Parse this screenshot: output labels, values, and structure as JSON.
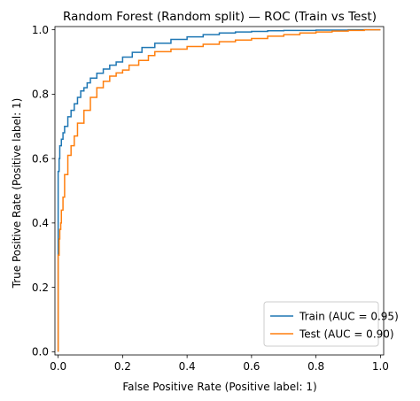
{
  "chart_data": {
    "type": "line",
    "title": "Random Forest (Random split) — ROC (Train vs Test)",
    "xlabel": "False Positive Rate (Positive label: 1)",
    "ylabel": "True Positive Rate (Positive label: 1)",
    "xlim": [
      -0.01,
      1.01
    ],
    "ylim": [
      -0.01,
      1.01
    ],
    "xticks": [
      0.0,
      0.2,
      0.4,
      0.6,
      0.8,
      1.0
    ],
    "yticks": [
      0.0,
      0.2,
      0.4,
      0.6,
      0.8,
      1.0
    ],
    "xtick_labels": [
      "0.0",
      "0.2",
      "0.4",
      "0.6",
      "0.8",
      "1.0"
    ],
    "ytick_labels": [
      "0.0",
      "0.2",
      "0.4",
      "0.6",
      "0.8",
      "1.0"
    ],
    "grid": false,
    "legend_position": "lower-right",
    "series": [
      {
        "name": "Train (AUC = 0.95)",
        "color": "#1f77b4",
        "x": [
          0.0,
          0.0,
          0.003,
          0.005,
          0.01,
          0.015,
          0.02,
          0.03,
          0.04,
          0.05,
          0.06,
          0.07,
          0.08,
          0.09,
          0.1,
          0.12,
          0.14,
          0.16,
          0.18,
          0.2,
          0.23,
          0.26,
          0.3,
          0.35,
          0.4,
          0.45,
          0.5,
          0.55,
          0.6,
          0.65,
          0.7,
          0.8,
          0.9,
          1.0
        ],
        "y": [
          0.0,
          0.5,
          0.56,
          0.6,
          0.64,
          0.66,
          0.68,
          0.7,
          0.73,
          0.75,
          0.77,
          0.79,
          0.81,
          0.82,
          0.835,
          0.85,
          0.865,
          0.878,
          0.89,
          0.9,
          0.915,
          0.93,
          0.945,
          0.958,
          0.97,
          0.978,
          0.985,
          0.99,
          0.993,
          0.995,
          0.997,
          0.998,
          0.999,
          1.0
        ]
      },
      {
        "name": "Test (AUC = 0.90)",
        "color": "#ff7f0e",
        "x": [
          0.0,
          0.0,
          0.003,
          0.005,
          0.008,
          0.01,
          0.015,
          0.02,
          0.03,
          0.04,
          0.05,
          0.06,
          0.08,
          0.1,
          0.12,
          0.14,
          0.16,
          0.18,
          0.2,
          0.22,
          0.25,
          0.28,
          0.3,
          0.35,
          0.4,
          0.45,
          0.5,
          0.55,
          0.6,
          0.65,
          0.7,
          0.75,
          0.8,
          0.85,
          0.9,
          0.95,
          1.0
        ],
        "y": [
          0.0,
          0.22,
          0.3,
          0.35,
          0.38,
          0.4,
          0.44,
          0.48,
          0.55,
          0.61,
          0.64,
          0.67,
          0.71,
          0.75,
          0.79,
          0.82,
          0.84,
          0.856,
          0.866,
          0.875,
          0.89,
          0.905,
          0.92,
          0.932,
          0.94,
          0.948,
          0.955,
          0.963,
          0.968,
          0.973,
          0.98,
          0.985,
          0.99,
          0.993,
          0.996,
          0.998,
          1.0
        ]
      }
    ]
  }
}
